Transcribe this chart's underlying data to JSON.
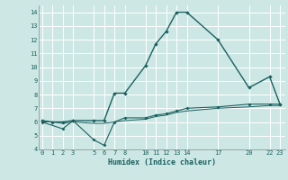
{
  "xlabel": "Humidex (Indice chaleur)",
  "bg_color": "#cde8e4",
  "line_color": "#1a6060",
  "ylim": [
    4,
    14.5
  ],
  "yticks": [
    4,
    5,
    6,
    7,
    8,
    9,
    10,
    11,
    12,
    13,
    14
  ],
  "xticks": [
    0,
    1,
    2,
    3,
    5,
    6,
    7,
    8,
    10,
    11,
    12,
    13,
    14,
    17,
    20,
    22,
    23
  ],
  "xlim": [
    -0.3,
    23.5
  ],
  "line1_x": [
    0,
    1,
    2,
    3,
    5,
    6,
    7,
    8,
    10,
    11,
    12,
    13,
    14,
    17,
    20,
    22,
    23
  ],
  "line1_y": [
    6.1,
    6.0,
    6.0,
    6.1,
    6.1,
    6.1,
    8.1,
    8.1,
    10.1,
    11.7,
    12.6,
    14.0,
    14.0,
    12.0,
    8.5,
    9.3,
    7.3
  ],
  "line2_x": [
    0,
    2,
    3,
    5,
    6,
    7,
    8,
    10,
    11,
    12,
    13,
    14,
    17,
    20,
    22,
    23
  ],
  "line2_y": [
    6.0,
    5.5,
    6.1,
    4.7,
    4.3,
    6.0,
    6.3,
    6.3,
    6.5,
    6.6,
    6.8,
    7.0,
    7.1,
    7.3,
    7.3,
    7.3
  ],
  "line3_x": [
    0,
    1,
    2,
    3,
    5,
    6,
    7,
    8,
    10,
    11,
    12,
    13,
    14,
    17,
    20,
    22,
    23
  ],
  "line3_y": [
    6.0,
    6.0,
    5.9,
    6.0,
    5.9,
    5.9,
    6.0,
    6.1,
    6.2,
    6.4,
    6.5,
    6.7,
    6.8,
    7.0,
    7.1,
    7.2,
    7.2
  ]
}
